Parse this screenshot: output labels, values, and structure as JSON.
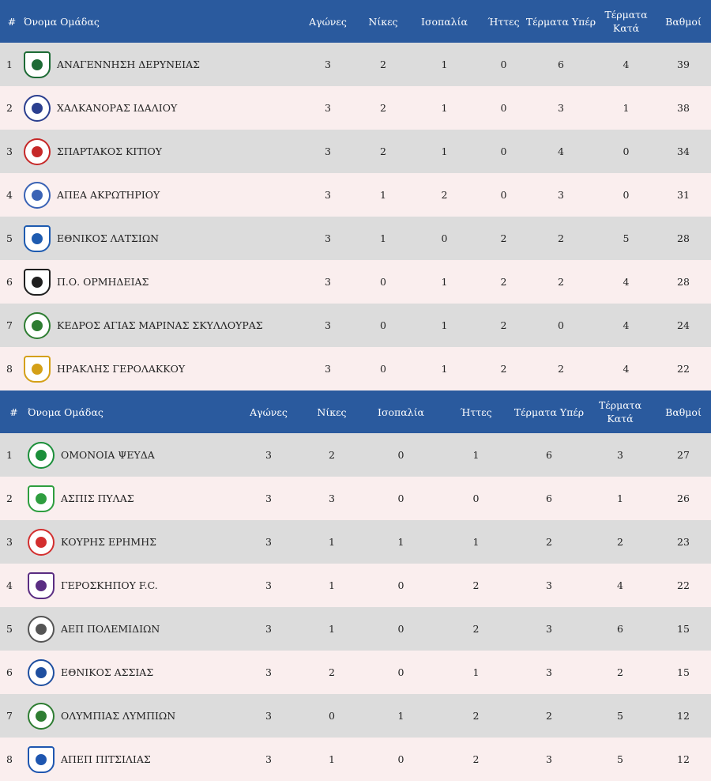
{
  "headers": [
    "#",
    "Όνομα Ομάδας",
    "Αγώνες",
    "Νίκες",
    "Ισοπαλία",
    "Ήττες",
    "Τέρματα Υπέρ",
    "Τέρματα Κατά",
    "Βαθμοί"
  ],
  "table1": [
    {
      "pos": "1",
      "name": "ΑΝΑΓΕΝΝΗΣΗ ΔΕΡΥΝΕΙΑΣ",
      "played": "3",
      "wins": "2",
      "draws": "1",
      "losses": "0",
      "gf": "6",
      "ga": "4",
      "points": "39",
      "logo_color": "#1d6b35",
      "logo_shape": "shield"
    },
    {
      "pos": "2",
      "name": "ΧΑΛΚΑΝΟΡΑΣ ΙΔΑΛΙΟΥ",
      "played": "3",
      "wins": "2",
      "draws": "1",
      "losses": "0",
      "gf": "3",
      "ga": "1",
      "points": "38",
      "logo_color": "#2b3f8f",
      "logo_shape": "circle"
    },
    {
      "pos": "3",
      "name": "ΣΠΑΡΤΑΚΟΣ ΚΙΤΙΟΥ",
      "played": "3",
      "wins": "2",
      "draws": "1",
      "losses": "0",
      "gf": "4",
      "ga": "0",
      "points": "34",
      "logo_color": "#c62828",
      "logo_shape": "circle"
    },
    {
      "pos": "4",
      "name": "ΑΠΕΑ ΑΚΡΩΤΗΡΙΟΥ",
      "played": "3",
      "wins": "1",
      "draws": "2",
      "losses": "0",
      "gf": "3",
      "ga": "0",
      "points": "31",
      "logo_color": "#3a63b5",
      "logo_shape": "circle"
    },
    {
      "pos": "5",
      "name": "ΕΘΝΙΚΟΣ ΛΑΤΣΙΩΝ",
      "played": "3",
      "wins": "1",
      "draws": "0",
      "losses": "2",
      "gf": "2",
      "ga": "5",
      "points": "28",
      "logo_color": "#1e5bb0",
      "logo_shape": "shield"
    },
    {
      "pos": "6",
      "name": "Π.Ο. ΟΡΜΗΔΕΙΑΣ",
      "played": "3",
      "wins": "0",
      "draws": "1",
      "losses": "2",
      "gf": "2",
      "ga": "4",
      "points": "28",
      "logo_color": "#1f1f1f",
      "logo_shape": "shield"
    },
    {
      "pos": "7",
      "name": "ΚΕΔΡΟΣ ΑΓΙΑΣ ΜΑΡΙΝΑΣ ΣΚΥΛΛΟΥΡΑΣ",
      "played": "3",
      "wins": "0",
      "draws": "1",
      "losses": "2",
      "gf": "0",
      "ga": "4",
      "points": "24",
      "logo_color": "#2e7d32",
      "logo_shape": "circle"
    },
    {
      "pos": "8",
      "name": "ΗΡΑΚΛΗΣ ΓΕΡΟΛΑΚΚΟΥ",
      "played": "3",
      "wins": "0",
      "draws": "1",
      "losses": "2",
      "gf": "2",
      "ga": "4",
      "points": "22",
      "logo_color": "#d4a017",
      "logo_shape": "shield"
    }
  ],
  "table2": [
    {
      "pos": "1",
      "name": "ΟΜΟΝΟΙΑ ΨΕΥΔΑ",
      "played": "3",
      "wins": "2",
      "draws": "0",
      "losses": "1",
      "gf": "6",
      "ga": "3",
      "points": "27",
      "logo_color": "#1b8f3a",
      "logo_shape": "circle"
    },
    {
      "pos": "2",
      "name": "ΑΣΠΙΣ ΠΥΛΑΣ",
      "played": "3",
      "wins": "3",
      "draws": "0",
      "losses": "0",
      "gf": "6",
      "ga": "1",
      "points": "26",
      "logo_color": "#2e9e3f",
      "logo_shape": "shield"
    },
    {
      "pos": "3",
      "name": "ΚΟΥΡΗΣ ΕΡΗΜΗΣ",
      "played": "3",
      "wins": "1",
      "draws": "1",
      "losses": "1",
      "gf": "2",
      "ga": "2",
      "points": "23",
      "logo_color": "#d32f2f",
      "logo_shape": "circle"
    },
    {
      "pos": "4",
      "name": "ΓΕΡΟΣΚΗΠΟΥ F.C.",
      "played": "3",
      "wins": "1",
      "draws": "0",
      "losses": "2",
      "gf": "3",
      "ga": "4",
      "points": "22",
      "logo_color": "#5a2d82",
      "logo_shape": "shield"
    },
    {
      "pos": "5",
      "name": "ΑΕΠ ΠΟΛΕΜΙΔΙΩΝ",
      "played": "3",
      "wins": "1",
      "draws": "0",
      "losses": "2",
      "gf": "3",
      "ga": "6",
      "points": "15",
      "logo_color": "#555555",
      "logo_shape": "circle"
    },
    {
      "pos": "6",
      "name": "ΕΘΝΙΚΟΣ ΑΣΣΙΑΣ",
      "played": "3",
      "wins": "2",
      "draws": "0",
      "losses": "1",
      "gf": "3",
      "ga": "2",
      "points": "15",
      "logo_color": "#1e4fa0",
      "logo_shape": "circle"
    },
    {
      "pos": "7",
      "name": "ΟΛΥΜΠΙΑΣ ΛΥΜΠΙΩΝ",
      "played": "3",
      "wins": "0",
      "draws": "1",
      "losses": "2",
      "gf": "2",
      "ga": "5",
      "points": "12",
      "logo_color": "#2e7d32",
      "logo_shape": "circle"
    },
    {
      "pos": "8",
      "name": "ΑΠΕΠ ΠΙΤΣΙΛΙΑΣ",
      "played": "3",
      "wins": "1",
      "draws": "0",
      "losses": "2",
      "gf": "3",
      "ga": "5",
      "points": "12",
      "logo_color": "#1e56b0",
      "logo_shape": "shield"
    }
  ]
}
